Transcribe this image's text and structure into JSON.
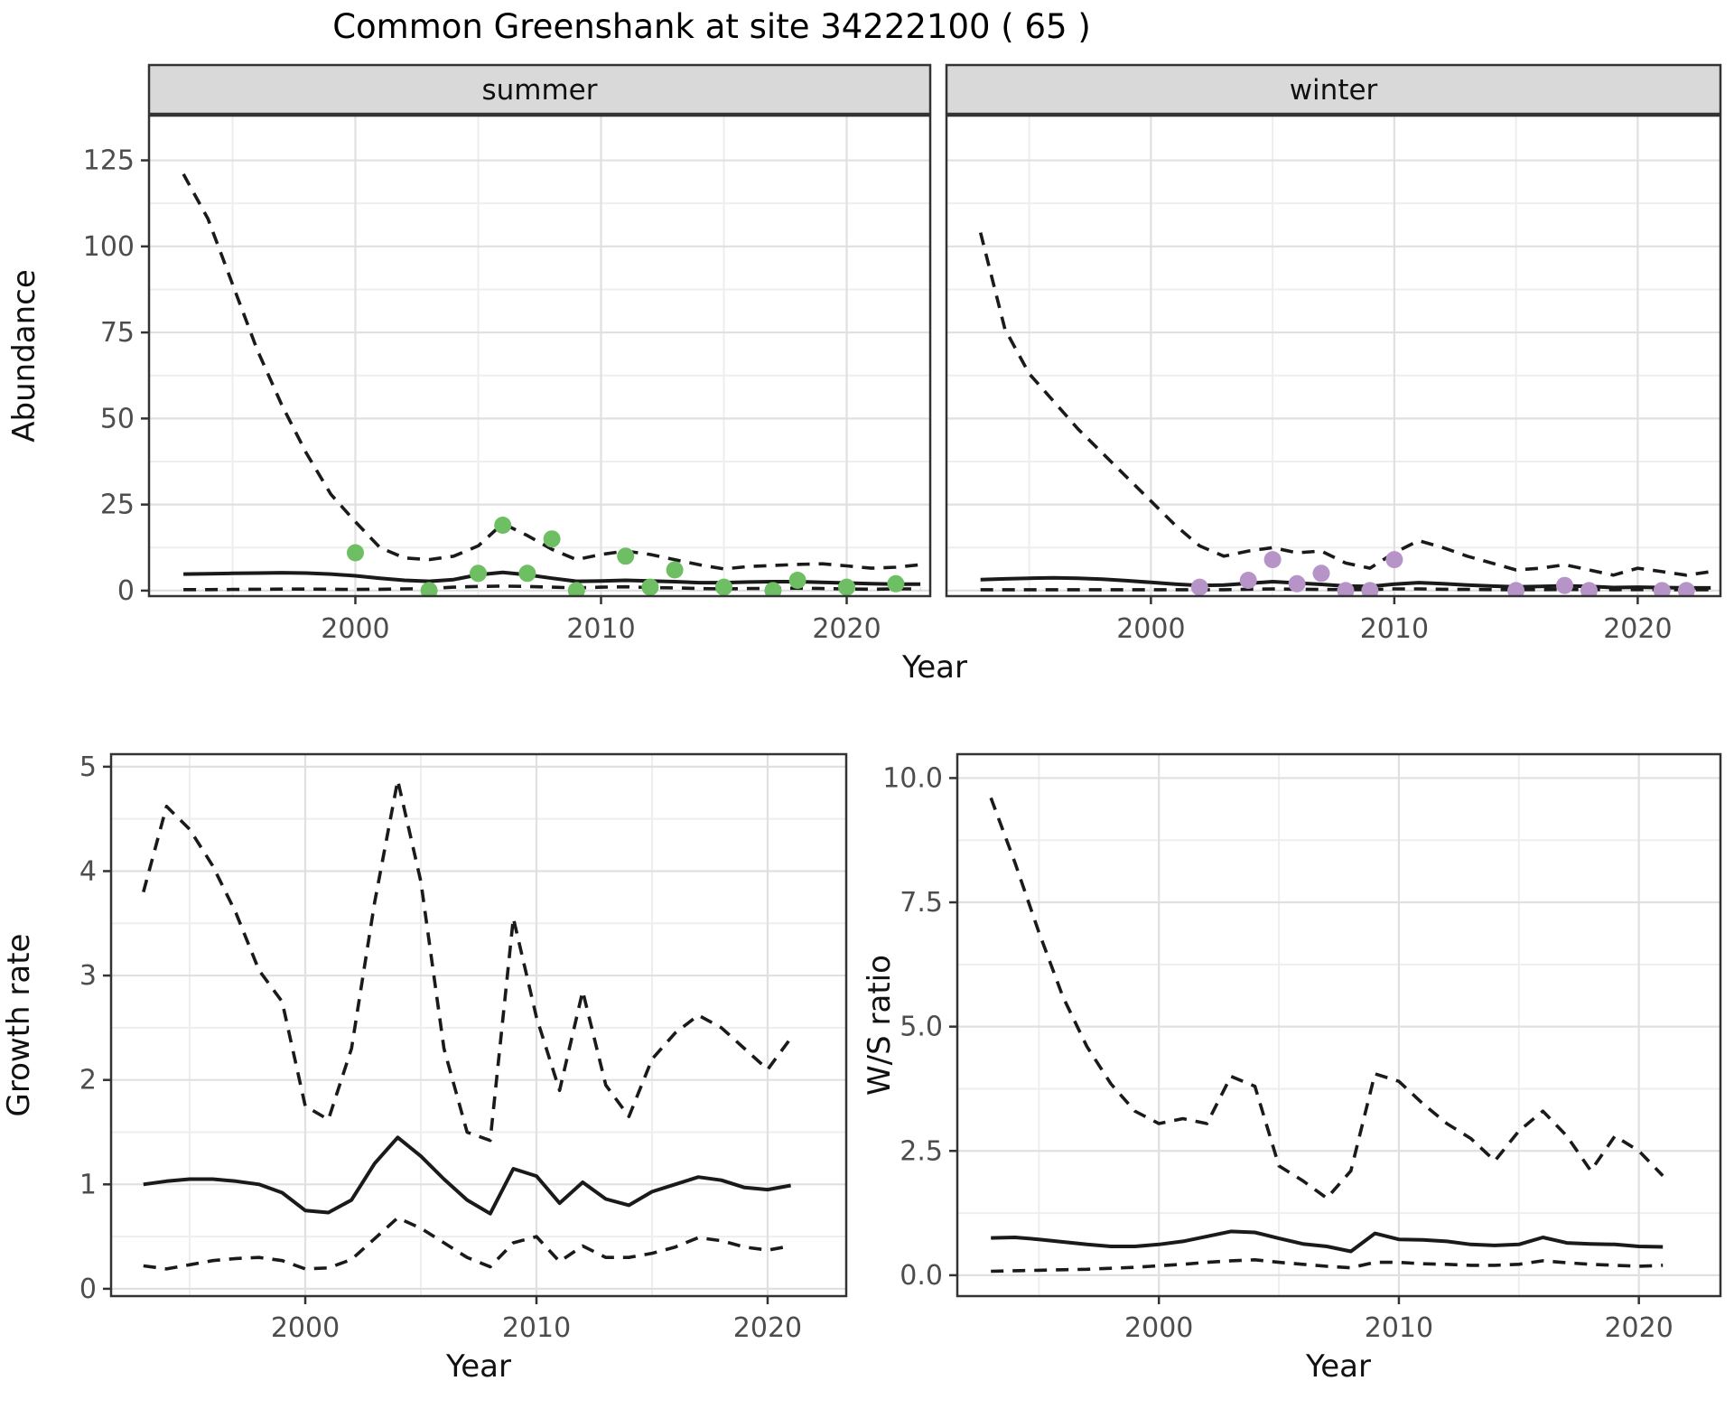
{
  "title": "Common Greenshank at site 34222100 ( 65 )",
  "colors": {
    "summer_point": "#6ebe64",
    "winter_point": "#b794c7",
    "line": "#1a1a1a",
    "strip_bg": "#d9d9d9",
    "panel_border": "#333333",
    "grid_major": "#e0e0e0",
    "grid_minor": "#eeeeee",
    "axis_text": "#4d4d4d",
    "axis_title": "#111111"
  },
  "chart_data": [
    {
      "id": "abundance_summer",
      "type": "line",
      "facet_label": "summer",
      "xlabel": "Year",
      "ylabel": "Abundance",
      "xlim": [
        1991.6,
        2023.4
      ],
      "ylim": [
        -1.6,
        138
      ],
      "x_major": [
        2000,
        2010,
        2020
      ],
      "x_minor": [
        1995,
        2005,
        2015
      ],
      "x_tick_labels": [
        "2000",
        "2010",
        "2020"
      ],
      "y_major": [
        0,
        25,
        50,
        75,
        100,
        125
      ],
      "y_minor": [
        12.5,
        37.5,
        62.5,
        87.5,
        112.5
      ],
      "y_tick_labels": [
        "0",
        "25",
        "50",
        "75",
        "100",
        "125"
      ],
      "series": [
        {
          "name": "upper_ci",
          "style": "dashed",
          "x": [
            1993,
            1994,
            1995,
            1996,
            1997,
            1998,
            1999,
            2000,
            2001,
            2002,
            2003,
            2004,
            2005,
            2006,
            2007,
            2008,
            2009,
            2010,
            2011,
            2012,
            2013,
            2014,
            2015,
            2016,
            2017,
            2018,
            2019,
            2020,
            2021,
            2022,
            2023
          ],
          "y": [
            121,
            108,
            89,
            70,
            54,
            40,
            28,
            20,
            12.5,
            9.5,
            9,
            10,
            13,
            19.5,
            16,
            12,
            9,
            10.5,
            11.5,
            10.5,
            9,
            7.5,
            6.3,
            7,
            7.3,
            7.6,
            7.8,
            7.2,
            6.5,
            6.8,
            7.5
          ]
        },
        {
          "name": "median",
          "style": "solid",
          "x": [
            1993,
            1994,
            1995,
            1996,
            1997,
            1998,
            1999,
            2000,
            2001,
            2002,
            2003,
            2004,
            2005,
            2006,
            2007,
            2008,
            2009,
            2010,
            2011,
            2012,
            2013,
            2014,
            2015,
            2016,
            2017,
            2018,
            2019,
            2020,
            2021,
            2022,
            2023
          ],
          "y": [
            4.8,
            4.9,
            5.0,
            5.1,
            5.2,
            5.1,
            4.8,
            4.3,
            3.6,
            3.0,
            2.7,
            3.2,
            4.6,
            5.3,
            4.6,
            3.6,
            2.7,
            2.8,
            3.0,
            2.8,
            2.6,
            2.3,
            2.3,
            2.5,
            2.6,
            2.6,
            2.4,
            2.2,
            2.0,
            1.9,
            1.9
          ]
        },
        {
          "name": "lower_ci",
          "style": "dashed",
          "x": [
            1993,
            1994,
            1995,
            1996,
            1997,
            1998,
            1999,
            2000,
            2001,
            2002,
            2003,
            2004,
            2005,
            2006,
            2007,
            2008,
            2009,
            2010,
            2011,
            2012,
            2013,
            2014,
            2015,
            2016,
            2017,
            2018,
            2019,
            2020,
            2021,
            2022,
            2023
          ],
          "y": [
            0.3,
            0.3,
            0.35,
            0.4,
            0.45,
            0.45,
            0.4,
            0.35,
            0.4,
            0.5,
            0.6,
            1.0,
            1.2,
            1.3,
            1.2,
            1.0,
            0.8,
            1.0,
            1.1,
            0.9,
            0.8,
            0.6,
            0.5,
            0.6,
            0.6,
            0.7,
            0.6,
            0.5,
            0.4,
            0.5,
            0.5
          ]
        }
      ],
      "points": {
        "name": "observed_counts_summer",
        "color": "#6ebe64",
        "x": [
          2000,
          2003,
          2005,
          2006,
          2007,
          2008,
          2009,
          2011,
          2012,
          2013,
          2015,
          2017,
          2018,
          2020,
          2022
        ],
        "y": [
          11,
          0,
          5,
          19,
          5,
          15,
          0,
          10,
          1,
          6,
          1,
          0,
          3,
          1,
          2
        ]
      }
    },
    {
      "id": "abundance_winter",
      "type": "line",
      "facet_label": "winter",
      "xlabel": "",
      "ylabel": "",
      "xlim": [
        1991.6,
        2023.4
      ],
      "ylim": [
        -1.6,
        138
      ],
      "x_major": [
        2000,
        2010,
        2020
      ],
      "x_minor": [
        1995,
        2005,
        2015
      ],
      "x_tick_labels": [
        "2000",
        "2010",
        "2020"
      ],
      "y_major": [
        0,
        25,
        50,
        75,
        100,
        125
      ],
      "y_minor": [
        12.5,
        37.5,
        62.5,
        87.5,
        112.5
      ],
      "y_tick_labels": [],
      "series": [
        {
          "name": "upper_ci",
          "style": "dashed",
          "x": [
            1993,
            1994,
            1995,
            1996,
            1997,
            1998,
            1999,
            2000,
            2001,
            2002,
            2003,
            2004,
            2005,
            2006,
            2007,
            2008,
            2009,
            2010,
            2011,
            2012,
            2013,
            2014,
            2015,
            2016,
            2017,
            2018,
            2019,
            2020,
            2021,
            2022,
            2023
          ],
          "y": [
            104,
            76,
            63,
            55,
            47,
            40,
            33,
            26,
            19,
            13,
            10,
            11.5,
            12.5,
            11,
            11.5,
            8,
            6.5,
            11,
            14.5,
            12.5,
            10,
            8,
            6,
            6.5,
            7.5,
            6,
            4.5,
            6.5,
            5.5,
            4.5,
            5.5
          ]
        },
        {
          "name": "median",
          "style": "solid",
          "x": [
            1993,
            1994,
            1995,
            1996,
            1997,
            1998,
            1999,
            2000,
            2001,
            2002,
            2003,
            2004,
            2005,
            2006,
            2007,
            2008,
            2009,
            2010,
            2011,
            2012,
            2013,
            2014,
            2015,
            2016,
            2017,
            2018,
            2019,
            2020,
            2021,
            2022,
            2023
          ],
          "y": [
            3.2,
            3.4,
            3.6,
            3.7,
            3.6,
            3.3,
            2.9,
            2.4,
            1.9,
            1.5,
            1.6,
            2.1,
            2.6,
            2.2,
            1.8,
            1.3,
            1.2,
            1.9,
            2.3,
            2.0,
            1.6,
            1.3,
            1.1,
            1.2,
            1.4,
            1.2,
            0.9,
            1.0,
            0.9,
            0.8,
            0.8
          ]
        },
        {
          "name": "lower_ci",
          "style": "dashed",
          "x": [
            1993,
            1994,
            1995,
            1996,
            1997,
            1998,
            1999,
            2000,
            2001,
            2002,
            2003,
            2004,
            2005,
            2006,
            2007,
            2008,
            2009,
            2010,
            2011,
            2012,
            2013,
            2014,
            2015,
            2016,
            2017,
            2018,
            2019,
            2020,
            2021,
            2022,
            2023
          ],
          "y": [
            0.25,
            0.25,
            0.25,
            0.25,
            0.25,
            0.25,
            0.25,
            0.25,
            0.25,
            0.25,
            0.25,
            0.4,
            0.5,
            0.4,
            0.35,
            0.3,
            0.3,
            0.5,
            0.5,
            0.4,
            0.35,
            0.3,
            0.25,
            0.3,
            0.35,
            0.3,
            0.25,
            0.3,
            0.25,
            0.25,
            0.25
          ]
        }
      ],
      "points": {
        "name": "observed_counts_winter",
        "color": "#b794c7",
        "x": [
          2002,
          2004,
          2005,
          2006,
          2007,
          2008,
          2009,
          2010,
          2015,
          2017,
          2018,
          2021,
          2022
        ],
        "y": [
          1,
          3,
          9,
          2,
          5,
          0,
          0,
          9,
          0,
          1.5,
          0,
          0,
          0
        ]
      }
    },
    {
      "id": "growth_rate",
      "type": "line",
      "facet_label": "",
      "xlabel": "Year",
      "ylabel": "Growth rate",
      "xlim": [
        1991.6,
        2023.4
      ],
      "ylim": [
        -0.07,
        5.12
      ],
      "x_major": [
        2000,
        2010,
        2020
      ],
      "x_minor": [
        1995,
        2005,
        2015
      ],
      "x_tick_labels": [
        "2000",
        "2010",
        "2020"
      ],
      "y_major": [
        0,
        1,
        2,
        3,
        4,
        5
      ],
      "y_minor": [
        0.5,
        1.5,
        2.5,
        3.5,
        4.5
      ],
      "y_tick_labels": [
        "0",
        "1",
        "2",
        "3",
        "4",
        "5"
      ],
      "series": [
        {
          "name": "upper_ci",
          "style": "dashed",
          "x": [
            1993,
            1994,
            1995,
            1996,
            1997,
            1998,
            1999,
            2000,
            2001,
            2002,
            2003,
            2004,
            2005,
            2006,
            2007,
            2008,
            2009,
            2010,
            2011,
            2012,
            2013,
            2014,
            2015,
            2016,
            2017,
            2018,
            2019,
            2020,
            2021
          ],
          "y": [
            3.8,
            4.62,
            4.4,
            4.05,
            3.6,
            3.05,
            2.75,
            1.75,
            1.62,
            2.3,
            3.7,
            4.87,
            3.9,
            2.3,
            1.5,
            1.42,
            3.55,
            2.6,
            1.9,
            2.85,
            1.95,
            1.65,
            2.2,
            2.45,
            2.62,
            2.5,
            2.3,
            2.1,
            2.4
          ]
        },
        {
          "name": "median",
          "style": "solid",
          "x": [
            1993,
            1994,
            1995,
            1996,
            1997,
            1998,
            1999,
            2000,
            2001,
            2002,
            2003,
            2004,
            2005,
            2006,
            2007,
            2008,
            2009,
            2010,
            2011,
            2012,
            2013,
            2014,
            2015,
            2016,
            2017,
            2018,
            2019,
            2020,
            2021
          ],
          "y": [
            1.0,
            1.03,
            1.05,
            1.05,
            1.03,
            1.0,
            0.92,
            0.75,
            0.73,
            0.85,
            1.2,
            1.45,
            1.27,
            1.05,
            0.85,
            0.72,
            1.15,
            1.08,
            0.82,
            1.02,
            0.86,
            0.8,
            0.93,
            1.0,
            1.07,
            1.04,
            0.97,
            0.95,
            0.99
          ]
        },
        {
          "name": "lower_ci",
          "style": "dashed",
          "x": [
            1993,
            1994,
            1995,
            1996,
            1997,
            1998,
            1999,
            2000,
            2001,
            2002,
            2003,
            2004,
            2005,
            2006,
            2007,
            2008,
            2009,
            2010,
            2011,
            2012,
            2013,
            2014,
            2015,
            2016,
            2017,
            2018,
            2019,
            2020,
            2021
          ],
          "y": [
            0.22,
            0.19,
            0.23,
            0.27,
            0.29,
            0.3,
            0.27,
            0.19,
            0.2,
            0.28,
            0.48,
            0.68,
            0.58,
            0.44,
            0.3,
            0.21,
            0.44,
            0.5,
            0.26,
            0.41,
            0.3,
            0.3,
            0.34,
            0.4,
            0.49,
            0.46,
            0.4,
            0.37,
            0.41
          ]
        }
      ],
      "points": null
    },
    {
      "id": "ws_ratio",
      "type": "line",
      "facet_label": "",
      "xlabel": "Year",
      "ylabel": "W/S ratio",
      "xlim": [
        1991.6,
        2023.4
      ],
      "ylim": [
        -0.42,
        10.48
      ],
      "x_major": [
        2000,
        2010,
        2020
      ],
      "x_minor": [
        1995,
        2005,
        2015
      ],
      "x_tick_labels": [
        "2000",
        "2010",
        "2020"
      ],
      "y_major": [
        0,
        2.5,
        5,
        7.5,
        10
      ],
      "y_minor": [
        1.25,
        3.75,
        6.25,
        8.75
      ],
      "y_tick_labels": [
        "0.0",
        "2.5",
        "5.0",
        "7.5",
        "10.0"
      ],
      "series": [
        {
          "name": "upper_ci",
          "style": "dashed",
          "x": [
            1993,
            1994,
            1995,
            1996,
            1997,
            1998,
            1999,
            2000,
            2001,
            2002,
            2003,
            2004,
            2005,
            2006,
            2007,
            2008,
            2009,
            2010,
            2011,
            2012,
            2013,
            2014,
            2015,
            2016,
            2017,
            2018,
            2019,
            2020,
            2021
          ],
          "y": [
            9.6,
            8.3,
            6.9,
            5.6,
            4.6,
            3.85,
            3.3,
            3.05,
            3.15,
            3.05,
            4.0,
            3.8,
            2.2,
            1.9,
            1.55,
            2.1,
            4.05,
            3.9,
            3.45,
            3.05,
            2.75,
            2.3,
            2.9,
            3.3,
            2.8,
            2.1,
            2.8,
            2.5,
            2.0
          ]
        },
        {
          "name": "median",
          "style": "solid",
          "x": [
            1993,
            1994,
            1995,
            1996,
            1997,
            1998,
            1999,
            2000,
            2001,
            2002,
            2003,
            2004,
            2005,
            2006,
            2007,
            2008,
            2009,
            2010,
            2011,
            2012,
            2013,
            2014,
            2015,
            2016,
            2017,
            2018,
            2019,
            2020,
            2021
          ],
          "y": [
            0.75,
            0.76,
            0.72,
            0.67,
            0.62,
            0.58,
            0.58,
            0.62,
            0.68,
            0.78,
            0.88,
            0.86,
            0.74,
            0.63,
            0.58,
            0.48,
            0.84,
            0.72,
            0.71,
            0.68,
            0.62,
            0.6,
            0.62,
            0.76,
            0.65,
            0.63,
            0.62,
            0.58,
            0.57
          ]
        },
        {
          "name": "lower_ci",
          "style": "dashed",
          "x": [
            1993,
            1994,
            1995,
            1996,
            1997,
            1998,
            1999,
            2000,
            2001,
            2002,
            2003,
            2004,
            2005,
            2006,
            2007,
            2008,
            2009,
            2010,
            2011,
            2012,
            2013,
            2014,
            2015,
            2016,
            2017,
            2018,
            2019,
            2020,
            2021
          ],
          "y": [
            0.08,
            0.09,
            0.1,
            0.11,
            0.12,
            0.14,
            0.16,
            0.19,
            0.22,
            0.26,
            0.29,
            0.31,
            0.26,
            0.22,
            0.18,
            0.15,
            0.26,
            0.26,
            0.23,
            0.22,
            0.2,
            0.2,
            0.22,
            0.29,
            0.25,
            0.22,
            0.2,
            0.18,
            0.2
          ]
        }
      ],
      "points": null
    }
  ]
}
